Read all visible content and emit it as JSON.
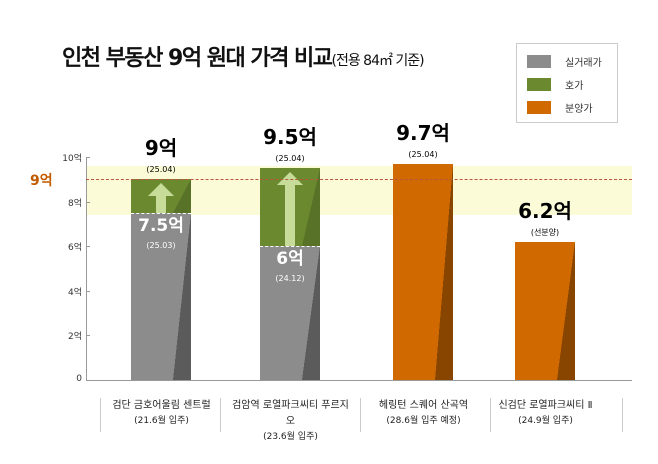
{
  "chart_data": {
    "type": "bar",
    "title": "인천 부동산 9억 원대 가격 비교",
    "subtitle": "(전용 84㎡ 기준)",
    "ylim": [
      0,
      10
    ],
    "yticks": [
      "0",
      "2억",
      "4억",
      "6억",
      "8억",
      "10억"
    ],
    "reference_line": {
      "value": 9,
      "label": "9억"
    },
    "highlight_band": [
      7.4,
      9.6
    ],
    "legend": [
      {
        "name": "실거래가",
        "color": "#8c8c8c"
      },
      {
        "name": "호가",
        "color": "#6b8a2f"
      },
      {
        "name": "분양가",
        "color": "#d06a00"
      }
    ],
    "categories": [
      {
        "name": "검단 금호어울림 센트럴",
        "note": "(21.6월 입주)"
      },
      {
        "name": "검암역 로열파크씨티 푸르지오",
        "note": "(23.6월 입주)"
      },
      {
        "name": "헤링턴 스퀘어 산곡역",
        "note": "(28.6월 입주 예정)"
      },
      {
        "name": "신검단 로열파크씨티 Ⅱ",
        "note": "(24.9월 입주)"
      }
    ],
    "bars": [
      {
        "real": 7.5,
        "real_label": "7.5억",
        "real_date": "(25.03)",
        "asking": 9,
        "asking_label": "9억",
        "asking_date": "(25.04)"
      },
      {
        "real": 6,
        "real_label": "6억",
        "real_date": "(24.12)",
        "asking": 9.5,
        "asking_label": "9.5억",
        "asking_date": "(25.04)"
      },
      {
        "presale": 9.7,
        "presale_label": "9.7억",
        "presale_date": "(25.04)"
      },
      {
        "presale": 6.2,
        "presale_label": "6.2억",
        "presale_date": "(선분양)"
      }
    ]
  }
}
